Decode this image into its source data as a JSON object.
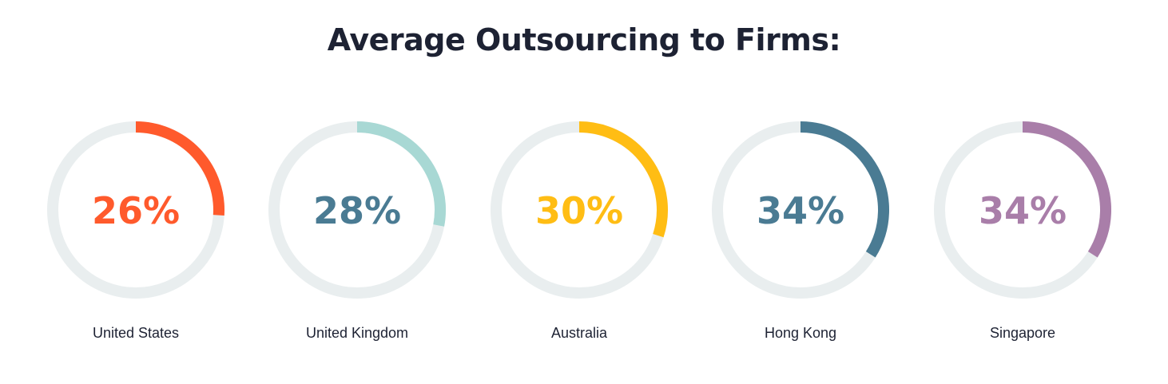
{
  "title": "Average Outsourcing to Firms:",
  "track_color": "#e9eeef",
  "chart_data": {
    "type": "donut-gauges",
    "title": "Average Outsourcing to Firms:",
    "max": 100,
    "items": [
      {
        "label": "United States",
        "value": 26,
        "display": "26%",
        "color": "#ff5a2c"
      },
      {
        "label": "United Kingdom",
        "value": 28,
        "display": "28%",
        "color": "#a8d8d4"
      },
      {
        "label": "Australia",
        "value": 30,
        "display": "30%",
        "color": "#ffbd14"
      },
      {
        "label": "Hong Kong",
        "value": 34,
        "display": "34%",
        "color": "#4a7b93"
      },
      {
        "label": "Singapore",
        "value": 34,
        "display": "34%",
        "color": "#a97ea9"
      }
    ]
  }
}
